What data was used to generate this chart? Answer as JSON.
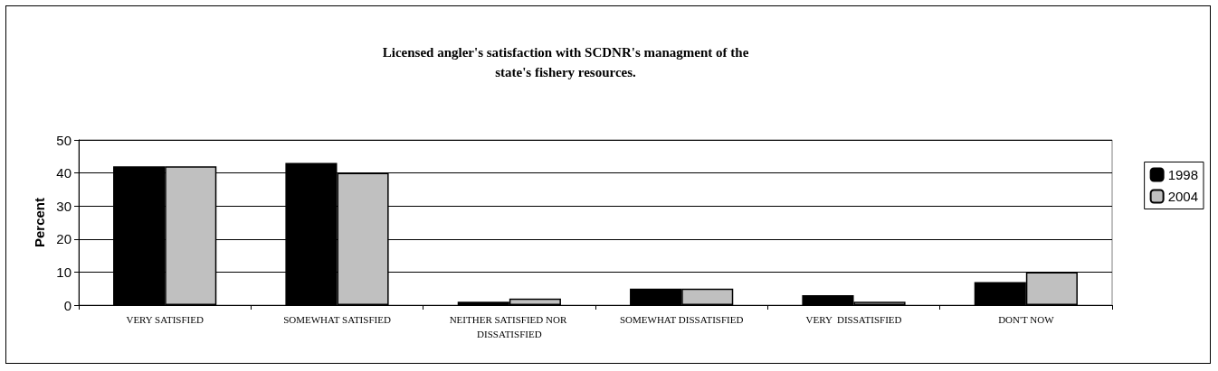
{
  "chart_data": {
    "type": "bar",
    "title": "Licensed angler's satisfaction with SCDNR's managment of the\nstate's fishery resources.",
    "ylabel": "Percent",
    "categories": [
      "VERY SATISFIED",
      "SOMEWHAT SATISFIED",
      "NEITHER SATISFIED NOR DISSATISFIED",
      "SOMEWHAT DISSATISFIED",
      "VERY  DISSATISFIED",
      "DON'T NOW"
    ],
    "series": [
      {
        "name": "1998",
        "color": "#000000",
        "values": [
          42,
          43,
          1,
          5,
          3,
          7
        ]
      },
      {
        "name": "2004",
        "color": "#c0c0c0",
        "values": [
          42,
          40,
          2,
          5,
          1,
          10
        ]
      }
    ],
    "ylim": [
      0,
      50
    ],
    "yticks": [
      0,
      10,
      20,
      30,
      40,
      50
    ],
    "grid": "y",
    "legend": "right"
  }
}
